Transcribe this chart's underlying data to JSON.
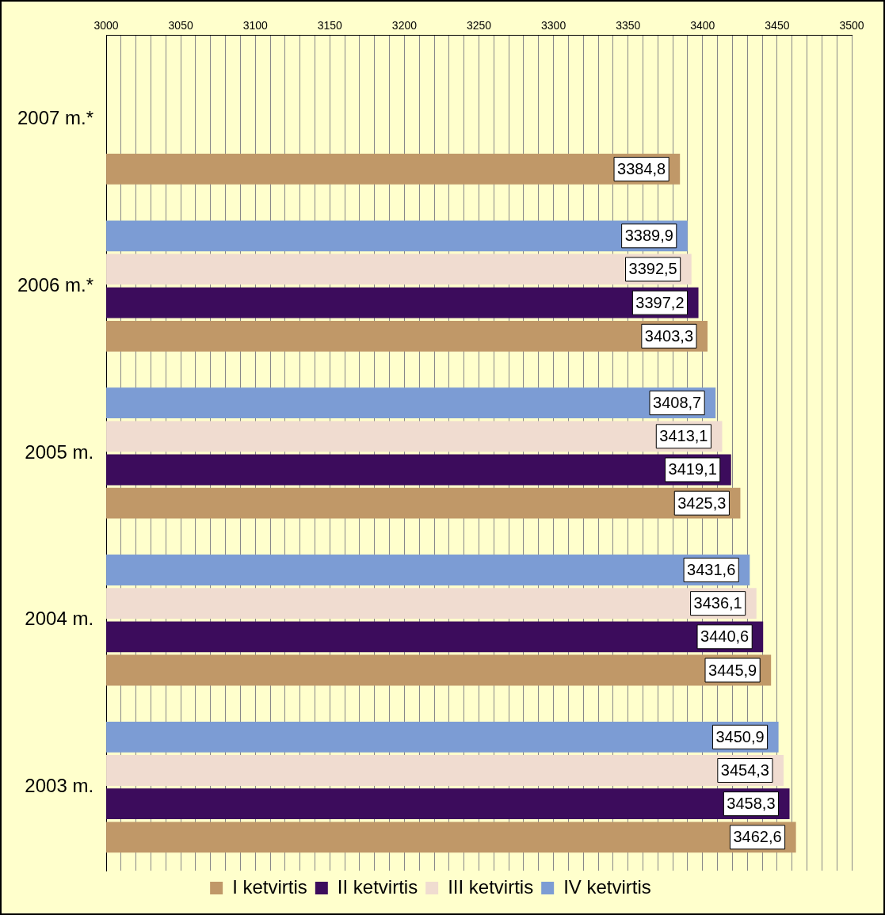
{
  "chart_data": {
    "type": "bar",
    "orientation": "horizontal",
    "categories": [
      "2007 m.*",
      "2006 m.*",
      "2005 m.",
      "2004 m.",
      "2003 m."
    ],
    "series": [
      {
        "name": "I ketvirtis",
        "color": "#c09868",
        "values": [
          3384.8,
          3403.3,
          3425.3,
          3445.9,
          3462.6
        ],
        "value_labels": [
          "3384,8",
          "3403,3",
          "3425,3",
          "3445,9",
          "3462,6"
        ]
      },
      {
        "name": "II ketvirtis",
        "color": "#3c0c5c",
        "values": [
          null,
          3397.2,
          3419.1,
          3440.6,
          3458.3
        ],
        "value_labels": [
          null,
          "3397,2",
          "3419,1",
          "3440,6",
          "3458,3"
        ]
      },
      {
        "name": "III ketvirtis",
        "color": "#f0dcd0",
        "values": [
          null,
          3392.5,
          3413.1,
          3436.1,
          3454.3
        ],
        "value_labels": [
          null,
          "3392,5",
          "3413,1",
          "3436,1",
          "3454,3"
        ]
      },
      {
        "name": "IV ketvirtis",
        "color": "#7c9cd4",
        "values": [
          null,
          3389.9,
          3408.7,
          3431.6,
          3450.9
        ],
        "value_labels": [
          null,
          "3389,9",
          "3408,7",
          "3431,6",
          "3450,9"
        ]
      }
    ],
    "xlim": [
      3000,
      3500
    ],
    "xticks": [
      3000,
      {
        "value": 3010,
        "label": null
      },
      {
        "value": 3020,
        "label": null
      },
      {
        "value": 3030,
        "label": null
      },
      {
        "value": 3040,
        "label": null
      },
      3050,
      {
        "value": 3060,
        "label": null
      },
      {
        "value": 3070,
        "label": null
      },
      {
        "value": 3080,
        "label": null
      },
      {
        "value": 3090,
        "label": null
      },
      3100,
      {
        "value": 3110,
        "label": null
      },
      {
        "value": 3120,
        "label": null
      },
      {
        "value": 3130,
        "label": null
      },
      {
        "value": 3140,
        "label": null
      },
      3150,
      {
        "value": 3160,
        "label": null
      },
      {
        "value": 3170,
        "label": null
      },
      {
        "value": 3180,
        "label": null
      },
      {
        "value": 3190,
        "label": null
      },
      3200,
      {
        "value": 3210,
        "label": null
      },
      {
        "value": 3220,
        "label": null
      },
      {
        "value": 3230,
        "label": null
      },
      {
        "value": 3240,
        "label": null
      },
      3250,
      {
        "value": 3260,
        "label": null
      },
      {
        "value": 3270,
        "label": null
      },
      {
        "value": 3280,
        "label": null
      },
      {
        "value": 3290,
        "label": null
      },
      3300,
      {
        "value": 3310,
        "label": null
      },
      {
        "value": 3320,
        "label": null
      },
      {
        "value": 3330,
        "label": null
      },
      {
        "value": 3340,
        "label": null
      },
      3350,
      {
        "value": 3360,
        "label": null
      },
      {
        "value": 3370,
        "label": null
      },
      {
        "value": 3380,
        "label": null
      },
      {
        "value": 3390,
        "label": null
      },
      3400,
      {
        "value": 3410,
        "label": null
      },
      {
        "value": 3420,
        "label": null
      },
      {
        "value": 3430,
        "label": null
      },
      {
        "value": 3440,
        "label": null
      },
      3450,
      {
        "value": 3460,
        "label": null
      },
      {
        "value": 3470,
        "label": null
      },
      {
        "value": 3480,
        "label": null
      },
      {
        "value": 3490,
        "label": null
      },
      3500
    ],
    "grid": "x",
    "legend": "bottom"
  }
}
